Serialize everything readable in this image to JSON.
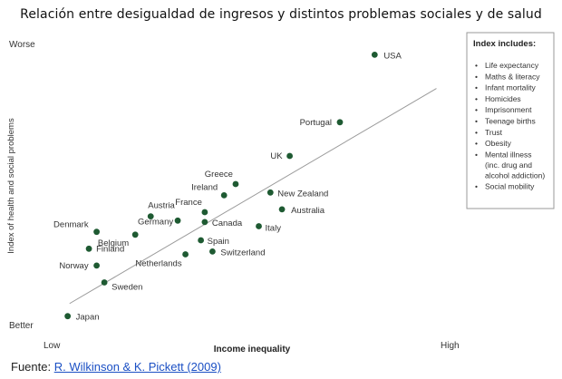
{
  "title": "Relación entre desigualdad de ingresos y distintos problemas sociales y de salud",
  "source": {
    "prefix": "Fuente: ",
    "link_text": "R. Wilkinson & K. Pickett (2009)"
  },
  "chart_data": {
    "type": "scatter",
    "title": "Relación entre desigualdad de ingresos y distintos problemas sociales y de salud",
    "xlabel": "Income inequality",
    "ylabel": "Index of health and social problems",
    "x_tick_labels": [
      "Low",
      "High"
    ],
    "y_tick_labels": [
      "Better",
      "Worse"
    ],
    "xlim": [
      0,
      10
    ],
    "ylim": [
      0,
      10
    ],
    "grid": false,
    "legend_position": "top-right",
    "point_color": "#1e5a32",
    "trend_line": {
      "from": [
        0.3,
        0.75
      ],
      "to": [
        9.8,
        8.4
      ]
    },
    "points": [
      {
        "label": "USA",
        "x": 8.2,
        "y": 9.6
      },
      {
        "label": "Portugal",
        "x": 7.3,
        "y": 7.2
      },
      {
        "label": "UK",
        "x": 6.0,
        "y": 6.0
      },
      {
        "label": "Greece",
        "x": 4.6,
        "y": 5.0
      },
      {
        "label": "Ireland",
        "x": 4.3,
        "y": 4.6
      },
      {
        "label": "New Zealand",
        "x": 5.5,
        "y": 4.7
      },
      {
        "label": "Australia",
        "x": 5.8,
        "y": 4.1
      },
      {
        "label": "France",
        "x": 3.8,
        "y": 4.0
      },
      {
        "label": "Austria",
        "x": 2.4,
        "y": 3.85
      },
      {
        "label": "Germany",
        "x": 3.1,
        "y": 3.7
      },
      {
        "label": "Canada",
        "x": 3.8,
        "y": 3.65
      },
      {
        "label": "Italy",
        "x": 5.2,
        "y": 3.5
      },
      {
        "label": "Denmark",
        "x": 1.0,
        "y": 3.3
      },
      {
        "label": "Belgium",
        "x": 2.0,
        "y": 3.2
      },
      {
        "label": "Spain",
        "x": 3.7,
        "y": 3.0
      },
      {
        "label": "Finland",
        "x": 0.8,
        "y": 2.7
      },
      {
        "label": "Switzerland",
        "x": 4.0,
        "y": 2.6
      },
      {
        "label": "Netherlands",
        "x": 3.3,
        "y": 2.5
      },
      {
        "label": "Norway",
        "x": 1.0,
        "y": 2.1
      },
      {
        "label": "Sweden",
        "x": 1.2,
        "y": 1.5
      },
      {
        "label": "Japan",
        "x": 0.25,
        "y": 0.3
      }
    ],
    "legend": {
      "title": "Index includes:",
      "items": [
        "Life expectancy",
        "Maths & literacy",
        "Infant mortality",
        "Homicides",
        "Imprisonment",
        "Teenage births",
        "Trust",
        "Obesity",
        "Mental illness (inc. drug and alcohol addiction)",
        "Social mobility"
      ]
    }
  }
}
